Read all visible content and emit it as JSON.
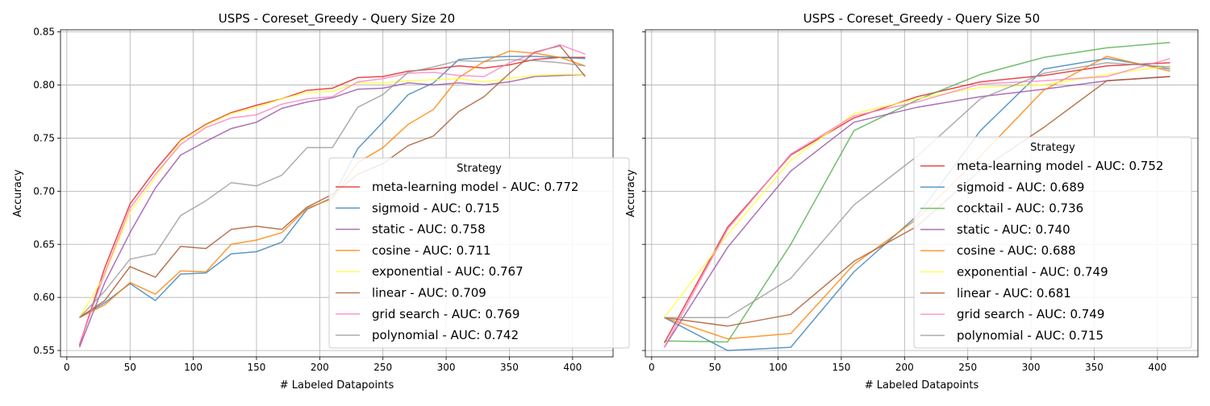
{
  "chart_data": [
    {
      "type": "line",
      "title": "USPS - Coreset_Greedy - Query Size 20",
      "xlabel": "# Labeled Datapoints",
      "ylabel": "Accuracy",
      "xlim": [
        -5,
        432
      ],
      "ylim": [
        0.544,
        0.852
      ],
      "xticks": [
        0,
        50,
        100,
        150,
        200,
        250,
        300,
        350,
        400
      ],
      "yticks": [
        0.55,
        0.6,
        0.65,
        0.7,
        0.75,
        0.8,
        0.85
      ],
      "ytick_labels": [
        "0.55",
        "0.60",
        "0.65",
        "0.70",
        "0.75",
        "0.80",
        "0.85"
      ],
      "grid": true,
      "legend_title": "Strategy",
      "legend_position": "center-right",
      "x": [
        10,
        30,
        50,
        70,
        90,
        110,
        130,
        150,
        170,
        190,
        210,
        230,
        250,
        270,
        290,
        310,
        330,
        350,
        370,
        390,
        410
      ],
      "series": [
        {
          "name": "meta-learning model - AUC: 0.772",
          "color": "#e41a1c",
          "values": [
            0.555,
            0.628,
            0.688,
            0.72,
            0.748,
            0.763,
            0.774,
            0.781,
            0.787,
            0.795,
            0.797,
            0.807,
            0.808,
            0.813,
            0.815,
            0.818,
            0.816,
            0.819,
            0.824,
            0.826,
            0.826
          ]
        },
        {
          "name": "sigmoid - AUC: 0.715",
          "color": "#377eb8",
          "values": [
            0.581,
            0.595,
            0.613,
            0.597,
            0.622,
            0.623,
            0.641,
            0.643,
            0.652,
            0.683,
            0.694,
            0.74,
            0.765,
            0.791,
            0.802,
            0.824,
            0.826,
            0.827,
            0.827,
            0.826,
            0.825
          ]
        },
        {
          "name": "static - AUC: 0.758",
          "color": "#984ea3",
          "values": [
            0.553,
            0.614,
            0.661,
            0.703,
            0.734,
            0.747,
            0.759,
            0.765,
            0.778,
            0.784,
            0.788,
            0.796,
            0.797,
            0.802,
            0.8,
            0.802,
            0.8,
            0.803,
            0.808,
            0.809,
            0.81
          ]
        },
        {
          "name": "cosine - AUC: 0.711",
          "color": "#ff7f00",
          "values": [
            0.581,
            0.593,
            0.614,
            0.603,
            0.625,
            0.624,
            0.65,
            0.654,
            0.661,
            0.684,
            0.693,
            0.727,
            0.741,
            0.763,
            0.777,
            0.807,
            0.822,
            0.832,
            0.83,
            0.826,
            0.818
          ]
        },
        {
          "name": "exponential - AUC: 0.767",
          "color": "#ffff33",
          "values": [
            0.581,
            0.621,
            0.68,
            0.713,
            0.747,
            0.762,
            0.773,
            0.779,
            0.787,
            0.793,
            0.794,
            0.802,
            0.802,
            0.804,
            0.805,
            0.806,
            0.803,
            0.806,
            0.809,
            0.81,
            0.81
          ]
        },
        {
          "name": "linear - AUC: 0.709",
          "color": "#a65628",
          "values": [
            0.581,
            0.597,
            0.629,
            0.619,
            0.648,
            0.646,
            0.664,
            0.667,
            0.664,
            0.685,
            0.697,
            0.716,
            0.726,
            0.743,
            0.752,
            0.775,
            0.789,
            0.811,
            0.831,
            0.837,
            0.808
          ]
        },
        {
          "name": "grid search - AUC: 0.769",
          "color": "#f781bf",
          "values": [
            0.556,
            0.623,
            0.684,
            0.716,
            0.744,
            0.76,
            0.769,
            0.772,
            0.782,
            0.787,
            0.789,
            0.803,
            0.806,
            0.811,
            0.812,
            0.809,
            0.808,
            0.821,
            0.83,
            0.838,
            0.829
          ]
        },
        {
          "name": "polynomial - AUC: 0.742",
          "color": "#999999",
          "values": [
            0.581,
            0.606,
            0.636,
            0.641,
            0.677,
            0.691,
            0.708,
            0.705,
            0.715,
            0.741,
            0.741,
            0.779,
            0.791,
            0.812,
            0.817,
            0.823,
            0.822,
            0.824,
            0.823,
            0.821,
            0.818
          ]
        }
      ]
    },
    {
      "type": "line",
      "title": "USPS - Coreset_Greedy - Query Size 50",
      "xlabel": "# Labeled Datapoints",
      "ylabel": "Accuracy",
      "xlim": [
        -5,
        432
      ],
      "ylim": [
        0.544,
        0.852
      ],
      "xticks": [
        0,
        50,
        100,
        150,
        200,
        250,
        300,
        350,
        400
      ],
      "yticks": [
        0.55,
        0.6,
        0.65,
        0.7,
        0.75,
        0.8,
        0.85
      ],
      "ytick_labels": [],
      "grid": true,
      "legend_title": "Strategy",
      "legend_position": "center-right",
      "x": [
        10,
        60,
        110,
        160,
        210,
        260,
        310,
        360,
        410
      ],
      "series": [
        {
          "name": "meta-learning model - AUC: 0.752",
          "color": "#e41a1c",
          "values": [
            0.557,
            0.666,
            0.734,
            0.769,
            0.789,
            0.803,
            0.809,
            0.818,
            0.821
          ]
        },
        {
          "name": "sigmoid - AUC: 0.689",
          "color": "#377eb8",
          "values": [
            0.581,
            0.55,
            0.553,
            0.624,
            0.677,
            0.757,
            0.815,
            0.825,
            0.815
          ]
        },
        {
          "name": "cocktail - AUC: 0.736",
          "color": "#4daf4a",
          "values": [
            0.559,
            0.558,
            0.65,
            0.757,
            0.786,
            0.81,
            0.826,
            0.835,
            0.84
          ]
        },
        {
          "name": "static - AUC: 0.740",
          "color": "#984ea3",
          "values": [
            0.553,
            0.647,
            0.719,
            0.765,
            0.779,
            0.789,
            0.796,
            0.804,
            0.808
          ]
        },
        {
          "name": "cosine - AUC: 0.688",
          "color": "#ff7f00",
          "values": [
            0.581,
            0.561,
            0.566,
            0.631,
            0.674,
            0.733,
            0.795,
            0.827,
            0.813
          ]
        },
        {
          "name": "exponential - AUC: 0.749",
          "color": "#ffff33",
          "values": [
            0.581,
            0.659,
            0.729,
            0.773,
            0.787,
            0.798,
            0.8,
            0.81,
            0.818
          ]
        },
        {
          "name": "linear - AUC: 0.681",
          "color": "#a65628",
          "values": [
            0.581,
            0.573,
            0.584,
            0.634,
            0.667,
            0.72,
            0.76,
            0.804,
            0.808
          ]
        },
        {
          "name": "grid search - AUC: 0.749",
          "color": "#f781bf",
          "values": [
            0.553,
            0.664,
            0.735,
            0.771,
            0.784,
            0.801,
            0.804,
            0.808,
            0.825
          ]
        },
        {
          "name": "polynomial - AUC: 0.715",
          "color": "#999999",
          "values": [
            0.581,
            0.581,
            0.618,
            0.687,
            0.733,
            0.787,
            0.811,
            0.821,
            0.817
          ]
        }
      ]
    }
  ]
}
